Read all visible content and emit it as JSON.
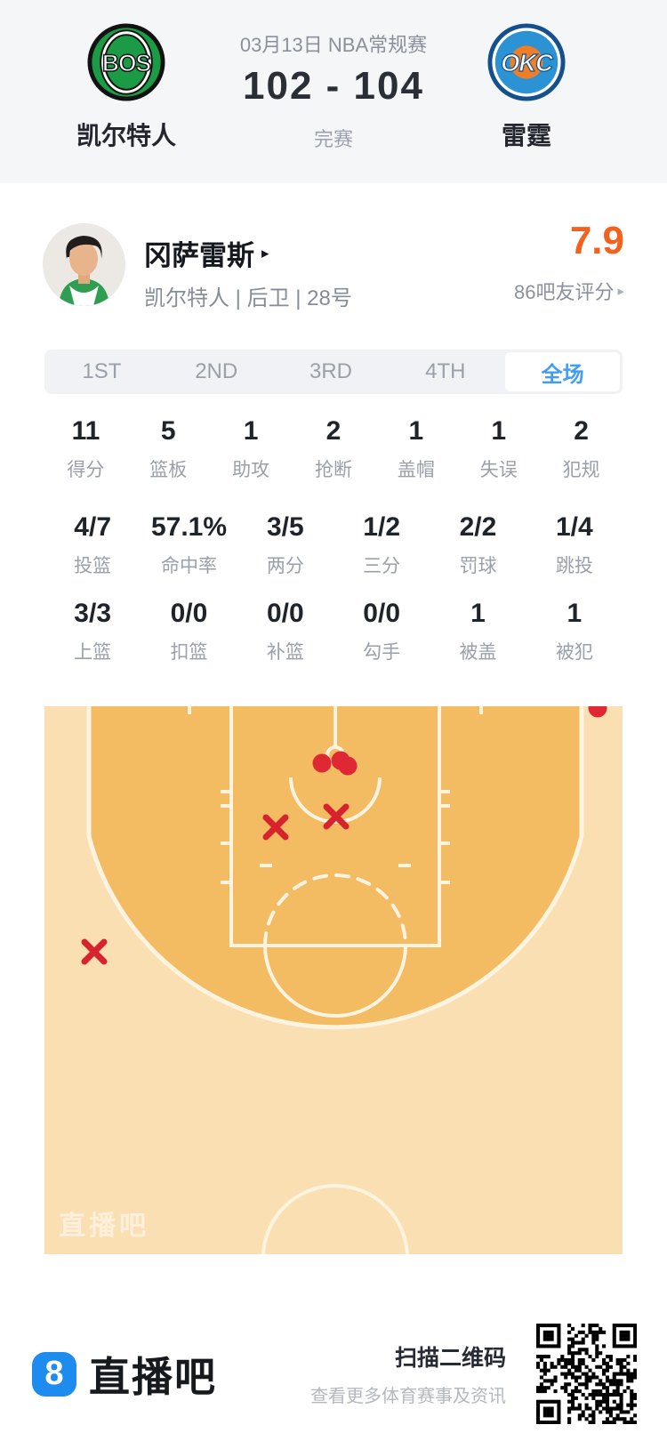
{
  "header": {
    "date_title": "03月13日 NBA常规赛",
    "score": "102 - 104",
    "status": "完赛",
    "home_team": {
      "abbr": "BOS",
      "name": "凯尔特人"
    },
    "away_team": {
      "abbr": "OKC",
      "name": "雷霆"
    }
  },
  "player": {
    "name": "冈萨雷斯",
    "name_caret": "▸",
    "meta": "凯尔特人 | 后卫 | 28号",
    "rating": "7.9",
    "rating_label": "86吧友评分",
    "rating_caret": "▸"
  },
  "tabs": [
    {
      "label": "1ST",
      "active": false
    },
    {
      "label": "2ND",
      "active": false
    },
    {
      "label": "3RD",
      "active": false
    },
    {
      "label": "4TH",
      "active": false
    },
    {
      "label": "全场",
      "active": true
    }
  ],
  "stats": {
    "row1": [
      {
        "value": "11",
        "label": "得分"
      },
      {
        "value": "5",
        "label": "篮板"
      },
      {
        "value": "1",
        "label": "助攻"
      },
      {
        "value": "2",
        "label": "抢断"
      },
      {
        "value": "1",
        "label": "盖帽"
      },
      {
        "value": "1",
        "label": "失误"
      },
      {
        "value": "2",
        "label": "犯规"
      }
    ],
    "row2": [
      {
        "value": "4/7",
        "label": "投篮"
      },
      {
        "value": "57.1%",
        "label": "命中率"
      },
      {
        "value": "3/5",
        "label": "两分"
      },
      {
        "value": "1/2",
        "label": "三分"
      },
      {
        "value": "2/2",
        "label": "罚球"
      },
      {
        "value": "1/4",
        "label": "跳投"
      }
    ],
    "row3": [
      {
        "value": "3/3",
        "label": "上篮"
      },
      {
        "value": "0/0",
        "label": "扣篮"
      },
      {
        "value": "0/0",
        "label": "补篮"
      },
      {
        "value": "0/0",
        "label": "勾手"
      },
      {
        "value": "1",
        "label": "被盖"
      },
      {
        "value": "1",
        "label": "被犯"
      }
    ]
  },
  "shot_chart": {
    "type": "scatter",
    "legend": {
      "made": "red dot",
      "missed": "red x"
    },
    "made_shots": [
      [
        312,
        64
      ],
      [
        333,
        61
      ],
      [
        341,
        67
      ],
      [
        622,
        2
      ]
    ],
    "missed_shots": [
      [
        328,
        124
      ],
      [
        260,
        136
      ],
      [
        56,
        276
      ]
    ],
    "watermark": "直播吧",
    "colors": {
      "court_inner": "#f3bb62",
      "court_outer": "#fadfb2",
      "line": "#fcf3e1",
      "made": "#e02834",
      "missed": "#d7232e"
    }
  },
  "footer": {
    "brand_glyph": "8",
    "brand": "直播吧",
    "qr_title": "扫描二维码",
    "qr_subtitle": "查看更多体育赛事及资讯"
  },
  "colors": {
    "accent_orange": "#f4611c",
    "accent_blue": "#3f9df7",
    "brand_blue": "#1e8bef",
    "header_bg": "#f5f6f8"
  }
}
